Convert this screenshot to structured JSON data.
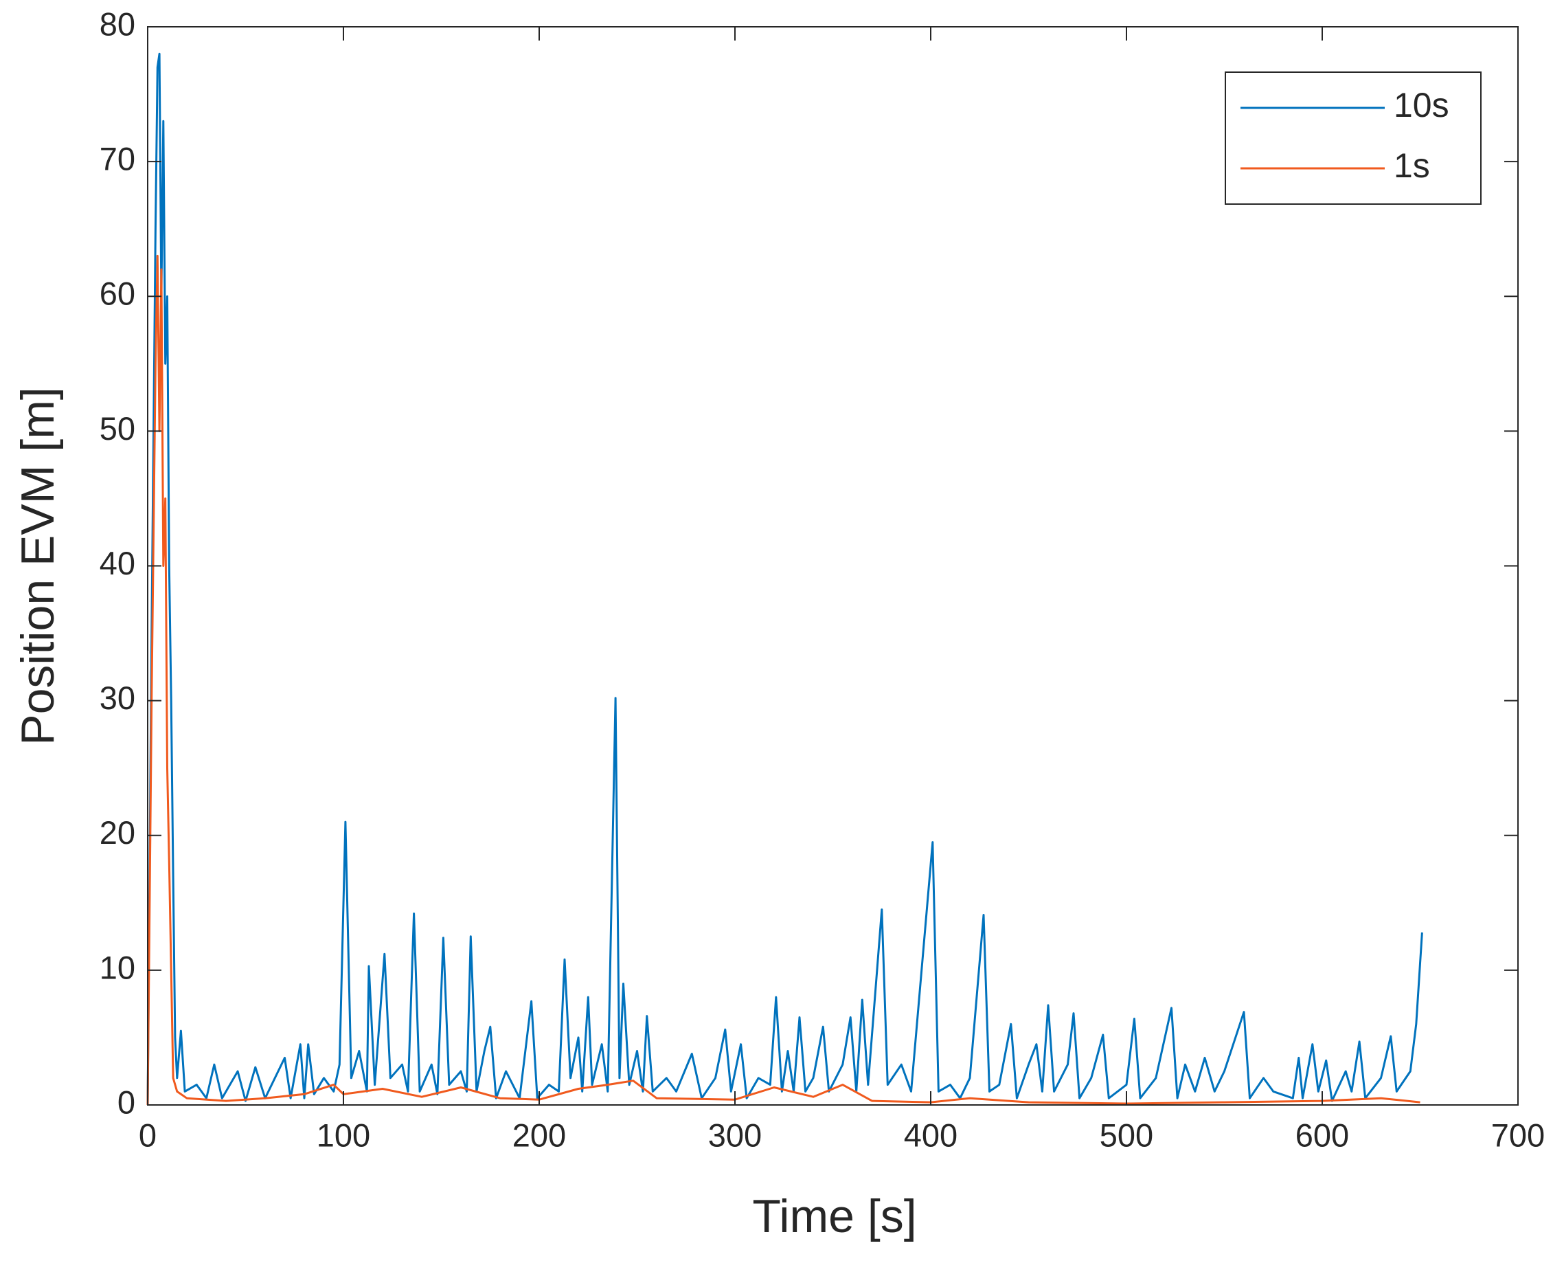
{
  "chart_data": {
    "type": "line",
    "xlabel": "Time [s]",
    "ylabel": "Position EVM [m]",
    "xlim": [
      0,
      700
    ],
    "xticks": [
      0,
      100,
      200,
      300,
      400,
      500,
      600,
      700
    ],
    "ylim": [
      0,
      80
    ],
    "yticks": [
      0,
      10,
      20,
      30,
      40,
      50,
      60,
      70,
      80
    ],
    "legend": "upper right",
    "series": [
      {
        "name": "10s",
        "color": "#0072bd",
        "x": [
          0,
          2,
          4,
          5,
          6,
          7,
          8,
          9,
          10,
          11,
          12,
          13,
          14,
          15,
          17,
          19,
          25,
          30,
          34,
          38,
          46,
          50,
          55,
          60,
          70,
          73,
          78,
          80,
          82,
          85,
          90,
          95,
          98,
          101,
          104,
          108,
          112,
          113,
          116,
          121,
          124,
          130,
          133,
          136,
          139,
          145,
          148,
          151,
          154,
          160,
          163,
          165,
          168,
          172,
          175,
          178,
          183,
          190,
          196,
          199,
          205,
          210,
          213,
          216,
          220,
          222,
          225,
          227,
          232,
          235,
          239,
          241,
          243,
          246,
          250,
          253,
          255,
          258,
          265,
          270,
          278,
          283,
          290,
          295,
          298,
          303,
          306,
          312,
          318,
          321,
          324,
          327,
          330,
          333,
          336,
          340,
          345,
          348,
          355,
          359,
          362,
          365,
          368,
          375,
          378,
          385,
          390,
          401,
          404,
          410,
          415,
          420,
          427,
          430,
          435,
          441,
          444,
          450,
          454,
          457,
          460,
          463,
          470,
          473,
          476,
          482,
          488,
          491,
          500,
          504,
          507,
          515,
          523,
          526,
          530,
          535,
          540,
          545,
          550,
          560,
          563,
          570,
          575,
          585,
          588,
          590,
          595,
          598,
          602,
          605,
          612,
          615,
          619,
          622,
          630,
          635,
          638,
          645,
          648,
          651
        ],
        "values": [
          0,
          35,
          65,
          77,
          78,
          60,
          73,
          55,
          60,
          40,
          30,
          17,
          5,
          2,
          5.5,
          1,
          1.5,
          0.5,
          3,
          0.5,
          2.5,
          0.3,
          2.8,
          0.5,
          3.5,
          0.5,
          4.5,
          0.5,
          4.5,
          0.8,
          2,
          1,
          3,
          21,
          2,
          4,
          1,
          10.3,
          1.5,
          11.2,
          2,
          3,
          1,
          14.2,
          1,
          3,
          0.8,
          12.4,
          1.5,
          2.5,
          1,
          12.5,
          1,
          4,
          5.8,
          0.5,
          2.5,
          0.5,
          7.7,
          0.5,
          1.5,
          1,
          10.8,
          2,
          5,
          1,
          8,
          1.5,
          4.5,
          1,
          30.2,
          2,
          9,
          1.5,
          4,
          1,
          6.6,
          1,
          2,
          1,
          3.8,
          0.5,
          2,
          5.6,
          1,
          4.5,
          0.5,
          2,
          1.5,
          8,
          1,
          4,
          1,
          6.5,
          1,
          2,
          5.8,
          1,
          3,
          6.5,
          1,
          7.8,
          1.5,
          14.5,
          1.5,
          3,
          1,
          19.5,
          1,
          1.5,
          0.5,
          2,
          14.1,
          1,
          1.5,
          6,
          0.5,
          3,
          4.5,
          1,
          7.4,
          1,
          3,
          6.8,
          0.5,
          2,
          5.2,
          0.5,
          1.5,
          6.4,
          0.5,
          2,
          7.2,
          0.5,
          3,
          1,
          3.5,
          1,
          2.5,
          6.9,
          0.5,
          2,
          1,
          0.5,
          3.5,
          0.5,
          4.5,
          1,
          3.3,
          0.3,
          2.5,
          1,
          4.7,
          0.5,
          2,
          5.1,
          1,
          2.5,
          6,
          12.8
        ]
      },
      {
        "name": "1s",
        "color": "#f05a1e",
        "x": [
          0,
          2,
          4,
          5,
          6,
          7,
          8,
          9,
          10,
          11,
          12,
          13,
          15,
          20,
          40,
          60,
          80,
          95,
          100,
          120,
          140,
          160,
          180,
          200,
          220,
          235,
          248,
          260,
          300,
          320,
          340,
          355,
          370,
          400,
          420,
          450,
          500,
          550,
          600,
          630,
          650
        ],
        "values": [
          0,
          30,
          55,
          63,
          50,
          62,
          40,
          45,
          25,
          18,
          10,
          2,
          1,
          0.5,
          0.3,
          0.5,
          0.8,
          1.5,
          0.8,
          1.2,
          0.6,
          1.3,
          0.5,
          0.4,
          1.2,
          1.5,
          1.8,
          0.5,
          0.4,
          1.3,
          0.6,
          1.5,
          0.3,
          0.2,
          0.5,
          0.2,
          0.1,
          0.2,
          0.3,
          0.5,
          0.2
        ]
      }
    ]
  }
}
